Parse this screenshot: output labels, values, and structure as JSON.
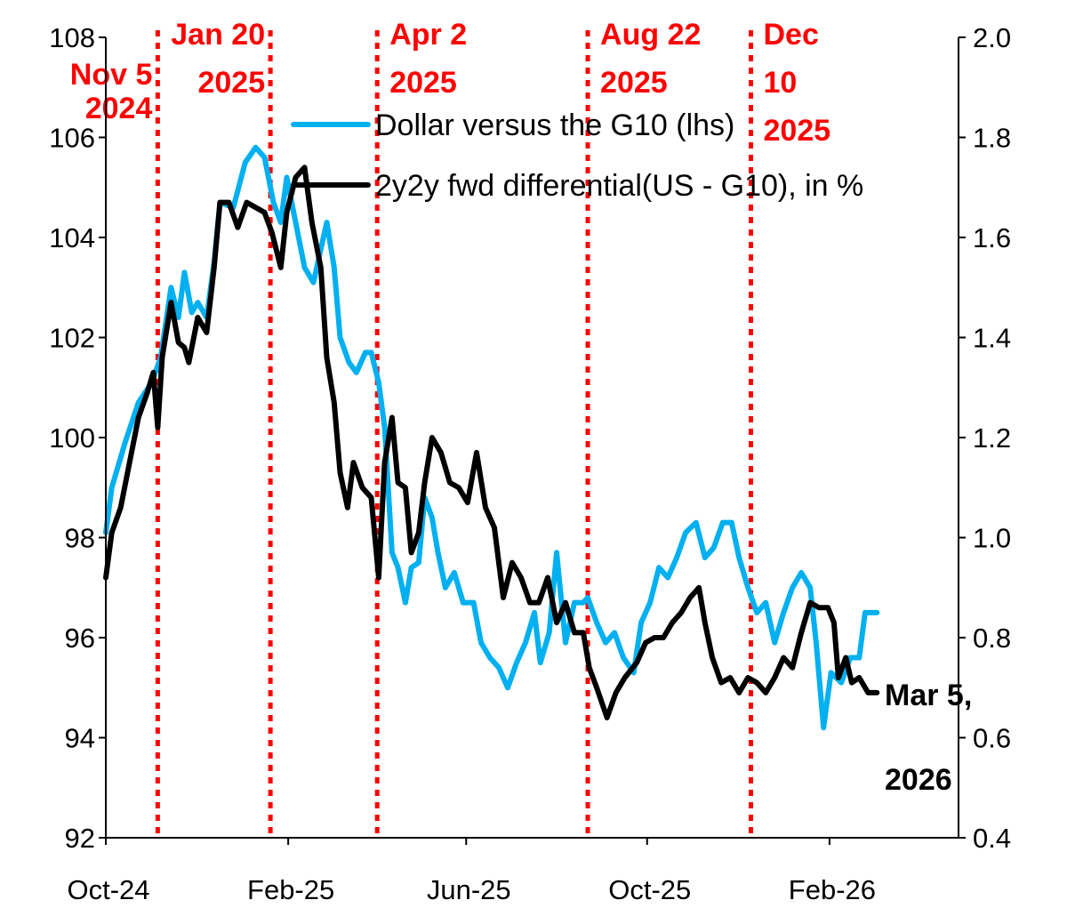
{
  "chart_data": {
    "type": "line",
    "title": "",
    "xlabel": "",
    "ylabel_left": "",
    "ylabel_right": "",
    "xlim": [
      "2024-10-01",
      "2026-04-29"
    ],
    "ylim_left": [
      92,
      108
    ],
    "ylim_right": [
      0.4,
      2.0
    ],
    "yticks_left": [
      "92",
      "94",
      "96",
      "98",
      "100",
      "102",
      "104",
      "106",
      "108"
    ],
    "yticks_right": [
      "0.4",
      "0.6",
      "0.8",
      "1.0",
      "1.2",
      "1.4",
      "1.6",
      "1.8",
      "2.0"
    ],
    "xticks": [
      {
        "date": "2024-10-01",
        "label": "Oct-24"
      },
      {
        "date": "2025-02-01",
        "label": "Feb-25"
      },
      {
        "date": "2025-06-01",
        "label": "Jun-25"
      },
      {
        "date": "2025-10-01",
        "label": "Oct-25"
      },
      {
        "date": "2026-02-01",
        "label": "Feb-26"
      }
    ],
    "grid": false,
    "legend_placement": "top-center",
    "events": [
      {
        "date": "2024-11-05",
        "line1": "Nov 5",
        "line2": "2024",
        "line3": ""
      },
      {
        "date": "2025-01-20",
        "line1": "Jan 20",
        "line2": "2025",
        "line3": ""
      },
      {
        "date": "2025-04-02",
        "line1": "Apr 2",
        "line2": "2025",
        "line3": ""
      },
      {
        "date": "2025-08-22",
        "line1": "Aug 22",
        "line2": "2025",
        "line3": ""
      },
      {
        "date": "2025-12-10",
        "line1": "Dec",
        "line2": "10",
        "line3": "2025"
      }
    ],
    "event_color": "#ff0000",
    "end_label": {
      "line1": "Mar 5,",
      "line2": "2026"
    },
    "series": [
      {
        "name": "Dollar versus the G10 (lhs)",
        "axis": "left",
        "color": "#00b0f0",
        "points": [
          [
            "2024-10-01",
            98.1
          ],
          [
            "2024-10-05",
            99.0
          ],
          [
            "2024-10-14",
            99.9
          ],
          [
            "2024-10-23",
            100.7
          ],
          [
            "2024-11-01",
            101.1
          ],
          [
            "2024-11-07",
            101.6
          ],
          [
            "2024-11-14",
            103.0
          ],
          [
            "2024-11-19",
            102.4
          ],
          [
            "2024-11-23",
            103.3
          ],
          [
            "2024-11-28",
            102.5
          ],
          [
            "2024-12-02",
            102.7
          ],
          [
            "2024-12-08",
            102.4
          ],
          [
            "2024-12-13",
            103.5
          ],
          [
            "2024-12-17",
            104.7
          ],
          [
            "2024-12-26",
            104.6
          ],
          [
            "2025-01-03",
            105.5
          ],
          [
            "2025-01-10",
            105.8
          ],
          [
            "2025-01-16",
            105.6
          ],
          [
            "2025-01-22",
            104.7
          ],
          [
            "2025-01-27",
            104.3
          ],
          [
            "2025-01-31",
            105.2
          ],
          [
            "2025-02-06",
            104.3
          ],
          [
            "2025-02-12",
            103.4
          ],
          [
            "2025-02-18",
            103.1
          ],
          [
            "2025-02-27",
            104.3
          ],
          [
            "2025-03-04",
            103.4
          ],
          [
            "2025-03-08",
            102.0
          ],
          [
            "2025-03-14",
            101.5
          ],
          [
            "2025-03-19",
            101.3
          ],
          [
            "2025-03-25",
            101.7
          ],
          [
            "2025-03-29",
            101.7
          ],
          [
            "2025-04-03",
            101.1
          ],
          [
            "2025-04-07",
            100.2
          ],
          [
            "2025-04-12",
            97.7
          ],
          [
            "2025-04-16",
            97.4
          ],
          [
            "2025-04-21",
            96.7
          ],
          [
            "2025-04-25",
            97.4
          ],
          [
            "2025-04-30",
            97.5
          ],
          [
            "2025-05-04",
            98.8
          ],
          [
            "2025-05-09",
            98.4
          ],
          [
            "2025-05-13",
            97.7
          ],
          [
            "2025-05-18",
            97.0
          ],
          [
            "2025-05-24",
            97.3
          ],
          [
            "2025-05-30",
            96.7
          ],
          [
            "2025-06-06",
            96.7
          ],
          [
            "2025-06-11",
            95.9
          ],
          [
            "2025-06-17",
            95.6
          ],
          [
            "2025-06-23",
            95.4
          ],
          [
            "2025-06-29",
            95.0
          ],
          [
            "2025-07-05",
            95.5
          ],
          [
            "2025-07-11",
            95.9
          ],
          [
            "2025-07-17",
            96.5
          ],
          [
            "2025-07-21",
            95.5
          ],
          [
            "2025-07-27",
            96.1
          ],
          [
            "2025-08-01",
            97.7
          ],
          [
            "2025-08-07",
            95.9
          ],
          [
            "2025-08-13",
            96.7
          ],
          [
            "2025-08-19",
            96.7
          ],
          [
            "2025-08-22",
            96.8
          ],
          [
            "2025-08-28",
            96.3
          ],
          [
            "2025-09-03",
            95.9
          ],
          [
            "2025-09-09",
            96.1
          ],
          [
            "2025-09-15",
            95.6
          ],
          [
            "2025-09-22",
            95.3
          ],
          [
            "2025-09-27",
            96.3
          ],
          [
            "2025-10-03",
            96.7
          ],
          [
            "2025-10-09",
            97.4
          ],
          [
            "2025-10-15",
            97.2
          ],
          [
            "2025-10-21",
            97.6
          ],
          [
            "2025-10-27",
            98.1
          ],
          [
            "2025-11-03",
            98.3
          ],
          [
            "2025-11-09",
            97.6
          ],
          [
            "2025-11-15",
            97.8
          ],
          [
            "2025-11-21",
            98.3
          ],
          [
            "2025-11-27",
            98.3
          ],
          [
            "2025-12-02",
            97.6
          ],
          [
            "2025-12-08",
            97.0
          ],
          [
            "2025-12-14",
            96.5
          ],
          [
            "2025-12-20",
            96.7
          ],
          [
            "2025-12-26",
            95.9
          ],
          [
            "2026-01-01",
            96.5
          ],
          [
            "2026-01-07",
            97.0
          ],
          [
            "2026-01-13",
            97.3
          ],
          [
            "2026-01-19",
            97.0
          ],
          [
            "2026-01-23",
            95.9
          ],
          [
            "2026-01-28",
            94.2
          ],
          [
            "2026-02-02",
            95.3
          ],
          [
            "2026-02-09",
            95.1
          ],
          [
            "2026-02-15",
            95.6
          ],
          [
            "2026-02-21",
            95.6
          ],
          [
            "2026-02-25",
            96.5
          ],
          [
            "2026-03-05",
            96.5
          ]
        ]
      },
      {
        "name": "2y2y fwd differential(US - G10), in %",
        "axis": "right",
        "color": "#000000",
        "points": [
          [
            "2024-10-01",
            0.92
          ],
          [
            "2024-10-05",
            1.01
          ],
          [
            "2024-10-11",
            1.06
          ],
          [
            "2024-10-17",
            1.15
          ],
          [
            "2024-10-23",
            1.24
          ],
          [
            "2024-10-29",
            1.29
          ],
          [
            "2024-11-02",
            1.33
          ],
          [
            "2024-11-05",
            1.22
          ],
          [
            "2024-11-08",
            1.36
          ],
          [
            "2024-11-14",
            1.47
          ],
          [
            "2024-11-19",
            1.39
          ],
          [
            "2024-11-23",
            1.38
          ],
          [
            "2024-11-26",
            1.35
          ],
          [
            "2024-12-02",
            1.44
          ],
          [
            "2024-12-08",
            1.41
          ],
          [
            "2024-12-13",
            1.54
          ],
          [
            "2024-12-17",
            1.67
          ],
          [
            "2024-12-23",
            1.67
          ],
          [
            "2024-12-29",
            1.62
          ],
          [
            "2025-01-04",
            1.67
          ],
          [
            "2025-01-10",
            1.66
          ],
          [
            "2025-01-16",
            1.65
          ],
          [
            "2025-01-21",
            1.61
          ],
          [
            "2025-01-27",
            1.54
          ],
          [
            "2025-01-31",
            1.65
          ],
          [
            "2025-02-06",
            1.72
          ],
          [
            "2025-02-12",
            1.74
          ],
          [
            "2025-02-17",
            1.63
          ],
          [
            "2025-02-23",
            1.54
          ],
          [
            "2025-02-27",
            1.36
          ],
          [
            "2025-03-04",
            1.27
          ],
          [
            "2025-03-08",
            1.13
          ],
          [
            "2025-03-13",
            1.06
          ],
          [
            "2025-03-17",
            1.15
          ],
          [
            "2025-03-23",
            1.1
          ],
          [
            "2025-03-29",
            1.08
          ],
          [
            "2025-04-03",
            0.92
          ],
          [
            "2025-04-07",
            1.15
          ],
          [
            "2025-04-12",
            1.24
          ],
          [
            "2025-04-16",
            1.11
          ],
          [
            "2025-04-21",
            1.1
          ],
          [
            "2025-04-25",
            0.97
          ],
          [
            "2025-04-30",
            1.01
          ],
          [
            "2025-05-04",
            1.11
          ],
          [
            "2025-05-09",
            1.2
          ],
          [
            "2025-05-15",
            1.17
          ],
          [
            "2025-05-21",
            1.11
          ],
          [
            "2025-05-27",
            1.1
          ],
          [
            "2025-06-02",
            1.07
          ],
          [
            "2025-06-08",
            1.17
          ],
          [
            "2025-06-14",
            1.06
          ],
          [
            "2025-06-20",
            1.02
          ],
          [
            "2025-06-26",
            0.88
          ],
          [
            "2025-07-02",
            0.95
          ],
          [
            "2025-07-08",
            0.92
          ],
          [
            "2025-07-14",
            0.87
          ],
          [
            "2025-07-20",
            0.87
          ],
          [
            "2025-07-26",
            0.92
          ],
          [
            "2025-08-01",
            0.83
          ],
          [
            "2025-08-07",
            0.87
          ],
          [
            "2025-08-13",
            0.81
          ],
          [
            "2025-08-19",
            0.81
          ],
          [
            "2025-08-23",
            0.74
          ],
          [
            "2025-08-28",
            0.7
          ],
          [
            "2025-09-04",
            0.64
          ],
          [
            "2025-09-10",
            0.69
          ],
          [
            "2025-09-16",
            0.72
          ],
          [
            "2025-09-24",
            0.75
          ],
          [
            "2025-09-30",
            0.79
          ],
          [
            "2025-10-06",
            0.8
          ],
          [
            "2025-10-12",
            0.8
          ],
          [
            "2025-10-18",
            0.83
          ],
          [
            "2025-10-24",
            0.85
          ],
          [
            "2025-10-30",
            0.88
          ],
          [
            "2025-11-05",
            0.9
          ],
          [
            "2025-11-09",
            0.83
          ],
          [
            "2025-11-14",
            0.76
          ],
          [
            "2025-11-20",
            0.71
          ],
          [
            "2025-11-26",
            0.72
          ],
          [
            "2025-12-02",
            0.69
          ],
          [
            "2025-12-08",
            0.72
          ],
          [
            "2025-12-14",
            0.71
          ],
          [
            "2025-12-20",
            0.69
          ],
          [
            "2025-12-26",
            0.72
          ],
          [
            "2026-01-01",
            0.76
          ],
          [
            "2026-01-07",
            0.74
          ],
          [
            "2026-01-13",
            0.81
          ],
          [
            "2026-01-19",
            0.87
          ],
          [
            "2026-01-25",
            0.86
          ],
          [
            "2026-01-31",
            0.86
          ],
          [
            "2026-02-04",
            0.83
          ],
          [
            "2026-02-07",
            0.72
          ],
          [
            "2026-02-12",
            0.76
          ],
          [
            "2026-02-16",
            0.71
          ],
          [
            "2026-02-21",
            0.72
          ],
          [
            "2026-02-27",
            0.69
          ],
          [
            "2026-03-05",
            0.69
          ]
        ]
      }
    ]
  }
}
